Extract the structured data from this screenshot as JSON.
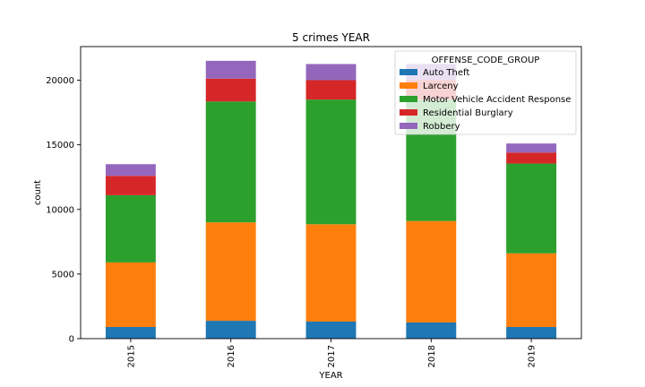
{
  "chart_data": {
    "type": "bar",
    "stacked": true,
    "title": "5 crimes YEAR",
    "xlabel": "YEAR",
    "ylabel": "count",
    "categories": [
      "2015",
      "2016",
      "2017",
      "2018",
      "2019"
    ],
    "ylim": [
      0,
      22600
    ],
    "yticks": [
      0,
      5000,
      10000,
      15000,
      20000
    ],
    "legend": {
      "title": "OFFENSE_CODE_GROUP",
      "placement": "upper-right"
    },
    "series": [
      {
        "name": "Auto Theft",
        "color": "#1f77b4",
        "values": [
          900,
          1380,
          1320,
          1250,
          900
        ]
      },
      {
        "name": "Larceny",
        "color": "#ff7f0e",
        "values": [
          5000,
          7620,
          7530,
          7850,
          5700
        ]
      },
      {
        "name": "Motor Vehicle Accident Response",
        "color": "#2ca02c",
        "values": [
          5200,
          9350,
          9650,
          9400,
          6950
        ]
      },
      {
        "name": "Residential Burglary",
        "color": "#d62728",
        "values": [
          1500,
          1770,
          1500,
          1500,
          850
        ]
      },
      {
        "name": "Robbery",
        "color": "#9467bd",
        "values": [
          900,
          1380,
          1250,
          1250,
          700
        ]
      }
    ]
  }
}
